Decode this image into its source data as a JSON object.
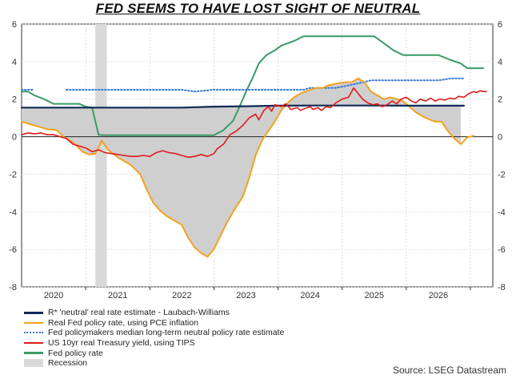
{
  "title": "FED SEEMS TO HAVE LOST SIGHT OF NEUTRAL",
  "source": "Source: LSEG Datastream",
  "chart_data": {
    "type": "line",
    "ylim": [
      -8,
      6
    ],
    "yticks": [
      -8,
      -6,
      -4,
      -2,
      0,
      2,
      4,
      6
    ],
    "xlim": [
      2019.0,
      2026.35
    ],
    "xticks": [
      {
        "label": "2020",
        "pos": 2020.0
      },
      {
        "label": "2021",
        "pos": 2021.0
      },
      {
        "label": "2022",
        "pos": 2022.0
      },
      {
        "label": "2023",
        "pos": 2023.0
      },
      {
        "label": "2024",
        "pos": 2024.0
      },
      {
        "label": "2025",
        "pos": 2025.0
      },
      {
        "label": "2026",
        "pos": 2026.0
      }
    ],
    "grid": true,
    "colors": {
      "rstar": "#0d2b55",
      "real_fed": "#f2a21e",
      "neutral_est": "#3a78d4",
      "tips": "#e01b1b",
      "fed_rate": "#3a9a68",
      "recession": "#d9d9d9",
      "fill": "#cfcfcf"
    },
    "recession": [
      2020.15,
      2020.33
    ],
    "legend": [
      {
        "key": "rstar",
        "label": "R* 'neutral' real rate estimate - Laubach-Williams",
        "style": "solid"
      },
      {
        "key": "real_fed",
        "label": "Real Fed policy rate, using PCE inflation",
        "style": "solid"
      },
      {
        "key": "neutral_est",
        "label": "Fed policymakers median long-term neutral policy rate estimate",
        "style": "dotted"
      },
      {
        "key": "tips",
        "label": "US 10yr real Treasury yield, using TIPS",
        "style": "solid"
      },
      {
        "key": "fed_rate",
        "label": "Fed policy rate",
        "style": "solid"
      },
      {
        "key": "recession",
        "label": "Recession",
        "style": "block"
      }
    ],
    "series": {
      "rstar": [
        [
          2019.0,
          1.55
        ],
        [
          2019.5,
          1.55
        ],
        [
          2020.0,
          1.55
        ],
        [
          2020.5,
          1.55
        ],
        [
          2021.0,
          1.55
        ],
        [
          2021.5,
          1.55
        ],
        [
          2022.0,
          1.6
        ],
        [
          2022.5,
          1.62
        ],
        [
          2023.0,
          1.65
        ],
        [
          2023.5,
          1.66
        ],
        [
          2024.0,
          1.66
        ],
        [
          2024.5,
          1.66
        ],
        [
          2025.0,
          1.65
        ],
        [
          2025.5,
          1.65
        ],
        [
          2025.9,
          1.65
        ]
      ],
      "real_fed": [
        [
          2019.0,
          0.8
        ],
        [
          2019.2,
          0.6
        ],
        [
          2019.4,
          0.4
        ],
        [
          2019.55,
          0.35
        ],
        [
          2019.65,
          0.0
        ],
        [
          2019.8,
          -0.3
        ],
        [
          2019.95,
          -0.8
        ],
        [
          2020.05,
          -0.95
        ],
        [
          2020.15,
          -0.9
        ],
        [
          2020.25,
          -0.2
        ],
        [
          2020.35,
          -0.7
        ],
        [
          2020.5,
          -1.1
        ],
        [
          2020.6,
          -1.3
        ],
        [
          2020.7,
          -1.5
        ],
        [
          2020.85,
          -2.0
        ],
        [
          2020.95,
          -2.8
        ],
        [
          2021.05,
          -3.5
        ],
        [
          2021.15,
          -3.9
        ],
        [
          2021.25,
          -4.2
        ],
        [
          2021.4,
          -4.5
        ],
        [
          2021.5,
          -4.7
        ],
        [
          2021.6,
          -5.4
        ],
        [
          2021.7,
          -5.9
        ],
        [
          2021.8,
          -6.2
        ],
        [
          2021.9,
          -6.4
        ],
        [
          2022.0,
          -6.0
        ],
        [
          2022.1,
          -5.3
        ],
        [
          2022.2,
          -4.6
        ],
        [
          2022.3,
          -4.0
        ],
        [
          2022.45,
          -3.2
        ],
        [
          2022.55,
          -2.2
        ],
        [
          2022.65,
          -1.0
        ],
        [
          2022.75,
          -0.2
        ],
        [
          2022.85,
          0.3
        ],
        [
          2022.95,
          0.8
        ],
        [
          2023.05,
          1.4
        ],
        [
          2023.15,
          1.8
        ],
        [
          2023.25,
          2.1
        ],
        [
          2023.35,
          2.3
        ],
        [
          2023.5,
          2.5
        ],
        [
          2023.6,
          2.6
        ],
        [
          2023.7,
          2.6
        ],
        [
          2023.8,
          2.75
        ],
        [
          2023.95,
          2.85
        ],
        [
          2024.05,
          2.9
        ],
        [
          2024.15,
          2.9
        ],
        [
          2024.25,
          3.1
        ],
        [
          2024.35,
          2.9
        ],
        [
          2024.45,
          2.4
        ],
        [
          2024.55,
          2.2
        ],
        [
          2024.65,
          2.0
        ],
        [
          2024.75,
          2.1
        ],
        [
          2024.85,
          2.0
        ],
        [
          2024.95,
          1.9
        ],
        [
          2025.05,
          1.6
        ],
        [
          2025.15,
          1.3
        ],
        [
          2025.3,
          1.0
        ],
        [
          2025.45,
          0.8
        ],
        [
          2025.55,
          0.8
        ],
        [
          2025.65,
          0.3
        ],
        [
          2025.75,
          -0.1
        ],
        [
          2025.85,
          -0.4
        ],
        [
          2025.95,
          -0.05
        ],
        [
          2026.05,
          0.05
        ]
      ],
      "neutral_est": [
        [
          2019.0,
          2.5
        ],
        [
          2019.2,
          2.5
        ],
        [
          null,
          null
        ],
        [
          2019.7,
          2.5
        ],
        [
          2020.5,
          2.5
        ],
        [
          2021.0,
          2.5
        ],
        [
          2021.5,
          2.5
        ],
        [
          2021.7,
          2.4
        ],
        [
          2022.0,
          2.5
        ],
        [
          2022.5,
          2.5
        ],
        [
          2023.0,
          2.5
        ],
        [
          2023.4,
          2.5
        ],
        [
          2023.5,
          2.6
        ],
        [
          2023.9,
          2.6
        ],
        [
          2024.2,
          2.8
        ],
        [
          2024.45,
          3.0
        ],
        [
          2025.0,
          3.0
        ],
        [
          2025.5,
          3.0
        ],
        [
          2025.7,
          3.1
        ],
        [
          2025.9,
          3.1
        ]
      ],
      "tips": [
        [
          2019.0,
          0.1
        ],
        [
          2019.1,
          0.2
        ],
        [
          2019.2,
          0.15
        ],
        [
          2019.3,
          0.2
        ],
        [
          2019.4,
          0.1
        ],
        [
          2019.5,
          0.1
        ],
        [
          2019.6,
          0.0
        ],
        [
          2019.7,
          -0.1
        ],
        [
          2019.8,
          -0.4
        ],
        [
          2019.9,
          -0.5
        ],
        [
          2020.0,
          -0.6
        ],
        [
          2020.1,
          -0.8
        ],
        [
          2020.2,
          -0.7
        ],
        [
          2020.3,
          -0.85
        ],
        [
          2020.4,
          -0.9
        ],
        [
          2020.5,
          -0.95
        ],
        [
          2020.6,
          -1.0
        ],
        [
          2020.7,
          -1.05
        ],
        [
          2020.8,
          -1.05
        ],
        [
          2020.9,
          -1.0
        ],
        [
          2021.0,
          -1.05
        ],
        [
          2021.1,
          -0.85
        ],
        [
          2021.2,
          -0.75
        ],
        [
          2021.3,
          -0.85
        ],
        [
          2021.4,
          -0.9
        ],
        [
          2021.5,
          -1.0
        ],
        [
          2021.6,
          -1.1
        ],
        [
          2021.7,
          -1.05
        ],
        [
          2021.8,
          -0.95
        ],
        [
          2021.9,
          -1.05
        ],
        [
          2022.0,
          -0.9
        ],
        [
          2022.05,
          -0.65
        ],
        [
          2022.15,
          -0.4
        ],
        [
          2022.25,
          0.1
        ],
        [
          2022.35,
          0.3
        ],
        [
          2022.45,
          0.6
        ],
        [
          2022.55,
          1.0
        ],
        [
          2022.65,
          1.2
        ],
        [
          2022.7,
          0.9
        ],
        [
          2022.78,
          1.4
        ],
        [
          2022.85,
          1.6
        ],
        [
          2022.9,
          1.35
        ],
        [
          2022.95,
          1.7
        ],
        [
          2023.05,
          1.6
        ],
        [
          2023.12,
          1.75
        ],
        [
          2023.2,
          1.45
        ],
        [
          2023.3,
          1.55
        ],
        [
          2023.35,
          1.4
        ],
        [
          2023.42,
          1.5
        ],
        [
          2023.5,
          1.6
        ],
        [
          2023.55,
          1.45
        ],
        [
          2023.62,
          1.55
        ],
        [
          2023.68,
          1.4
        ],
        [
          2023.75,
          1.6
        ],
        [
          2023.82,
          1.55
        ],
        [
          2023.9,
          1.8
        ],
        [
          2024.0,
          2.0
        ],
        [
          2024.1,
          2.1
        ],
        [
          2024.18,
          2.6
        ],
        [
          2024.25,
          2.3
        ],
        [
          2024.32,
          2.0
        ],
        [
          2024.4,
          1.8
        ],
        [
          2024.48,
          1.7
        ],
        [
          2024.55,
          1.75
        ],
        [
          2024.62,
          1.6
        ],
        [
          2024.7,
          1.7
        ],
        [
          2024.78,
          1.9
        ],
        [
          2024.85,
          1.75
        ],
        [
          2024.92,
          2.0
        ],
        [
          2025.0,
          2.1
        ],
        [
          2025.08,
          1.9
        ],
        [
          2025.15,
          1.8
        ],
        [
          2025.22,
          2.0
        ],
        [
          2025.3,
          1.9
        ],
        [
          2025.38,
          2.05
        ],
        [
          2025.45,
          1.9
        ],
        [
          2025.52,
          2.0
        ],
        [
          2025.6,
          1.95
        ],
        [
          2025.68,
          2.05
        ],
        [
          2025.75,
          2.0
        ],
        [
          2025.82,
          2.15
        ],
        [
          2025.9,
          2.1
        ],
        [
          2025.98,
          2.3
        ],
        [
          2026.05,
          2.4
        ],
        [
          2026.1,
          2.35
        ],
        [
          2026.15,
          2.45
        ],
        [
          2026.2,
          2.4
        ],
        [
          2026.25,
          2.4
        ]
      ],
      "fed_rate": [
        [
          2019.0,
          2.4
        ],
        [
          2019.1,
          2.4
        ],
        [
          2019.2,
          2.2
        ],
        [
          2019.35,
          2.0
        ],
        [
          2019.5,
          1.75
        ],
        [
          2019.9,
          1.75
        ],
        [
          2020.0,
          1.6
        ],
        [
          2020.1,
          1.55
        ],
        [
          2020.2,
          0.1
        ],
        [
          2020.3,
          0.08
        ],
        [
          2021.0,
          0.08
        ],
        [
          2021.5,
          0.08
        ],
        [
          2022.0,
          0.08
        ],
        [
          2022.15,
          0.35
        ],
        [
          2022.3,
          0.85
        ],
        [
          2022.4,
          1.6
        ],
        [
          2022.5,
          2.4
        ],
        [
          2022.6,
          3.1
        ],
        [
          2022.7,
          3.9
        ],
        [
          2022.82,
          4.35
        ],
        [
          2022.95,
          4.6
        ],
        [
          2023.05,
          4.85
        ],
        [
          2023.25,
          5.1
        ],
        [
          2023.4,
          5.35
        ],
        [
          2023.55,
          5.35
        ],
        [
          2023.7,
          5.35
        ],
        [
          2024.0,
          5.35
        ],
        [
          2024.5,
          5.35
        ],
        [
          2024.7,
          4.85
        ],
        [
          2024.8,
          4.6
        ],
        [
          2024.95,
          4.35
        ],
        [
          2025.0,
          4.35
        ],
        [
          2025.5,
          4.35
        ],
        [
          2025.68,
          4.1
        ],
        [
          2025.85,
          3.9
        ],
        [
          2025.95,
          3.65
        ],
        [
          2026.0,
          3.65
        ],
        [
          2026.2,
          3.65
        ]
      ]
    }
  }
}
